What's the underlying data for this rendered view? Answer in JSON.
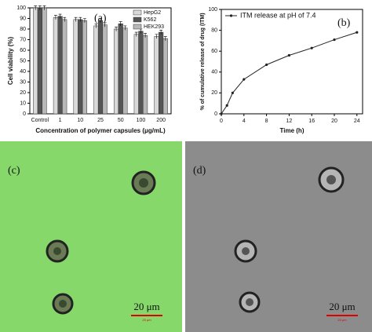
{
  "chart_data": [
    {
      "type": "bar",
      "panel_label": "(a)",
      "x_label": "Concentration of polymer capsules (μg/mL)",
      "y_label": "Cell viability (%)",
      "categories": [
        "Control",
        "1",
        "10",
        "25",
        "50",
        "100",
        "200"
      ],
      "series": [
        {
          "name": "HepG2",
          "color": "#d9d9d9",
          "values": [
            100,
            91,
            89,
            83,
            80,
            75,
            73
          ],
          "errors": [
            2,
            2,
            2,
            2,
            2,
            2,
            2
          ]
        },
        {
          "name": "K562",
          "color": "#555555",
          "values": [
            100,
            92,
            89,
            88,
            85,
            78,
            77
          ],
          "errors": [
            2,
            2,
            2,
            2,
            2,
            2,
            2
          ]
        },
        {
          "name": "HEK293",
          "color": "#b8b8b8",
          "values": [
            100,
            89,
            88,
            84,
            81,
            74,
            71
          ],
          "errors": [
            2,
            2,
            2,
            2,
            2,
            2,
            2
          ]
        }
      ],
      "ylim": [
        0,
        100
      ],
      "yticks": [
        0,
        10,
        20,
        30,
        40,
        50,
        60,
        70,
        80,
        90,
        100
      ],
      "legend": "upper right"
    },
    {
      "type": "line",
      "panel_label": "(b)",
      "x_label": "Time (h)",
      "y_label": "% of cumulative release of drug (ITM)",
      "x": [
        0,
        1,
        2,
        4,
        8,
        12,
        16,
        20,
        24
      ],
      "series": [
        {
          "name": "ITM release at pH of 7.4",
          "color": "#222222",
          "values": [
            0,
            8,
            20,
            33,
            47,
            56,
            63,
            71,
            78
          ]
        }
      ],
      "xlim": [
        0,
        25
      ],
      "xticks": [
        0,
        4,
        8,
        12,
        16,
        20,
        24
      ],
      "ylim": [
        0,
        100
      ],
      "yticks": [
        0,
        20,
        40,
        60,
        80,
        100
      ],
      "legend": "upper left"
    }
  ],
  "images": [
    {
      "label": "(c)",
      "scale_bar": "20 μm",
      "scale_caption": "20 μm"
    },
    {
      "label": "(d)",
      "scale_bar": "20 μm",
      "scale_caption": "20 μm"
    }
  ]
}
